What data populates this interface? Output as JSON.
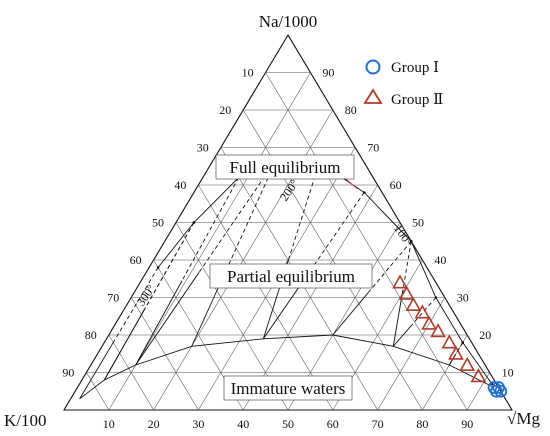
{
  "chart_data": {
    "type": "scatter",
    "subtype": "ternary",
    "title": "",
    "vertices": {
      "top": "Na/1000",
      "left": "K/100",
      "right": "√Mg"
    },
    "tick_labels": [
      "10",
      "20",
      "30",
      "40",
      "50",
      "60",
      "70",
      "80",
      "90"
    ],
    "grid": true,
    "grid_step": 10,
    "regions": {
      "full": "Full equilibrium",
      "partial": "Partial equilibrium",
      "immature": "Immature waters"
    },
    "isotherm_labels": [
      {
        "label": "100°",
        "t": 100
      },
      {
        "label": "200°",
        "t": 200
      },
      {
        "label": "300°",
        "t": 300
      }
    ],
    "isotherms_c": [
      80,
      100,
      120,
      140,
      160,
      180,
      200,
      220,
      240,
      260,
      280,
      300,
      320,
      340
    ],
    "legend_position": "top-right",
    "legend_markers": {
      "group1": {
        "shape": "circle",
        "color": "#1f6fd6"
      },
      "group2": {
        "shape": "triangle",
        "color": "#b33a2a"
      }
    },
    "series": [
      {
        "name": "Group Ⅰ",
        "marker": "circle",
        "color": "#1f6fd6",
        "points": [
          {
            "na": 6,
            "k": 1,
            "mg": 93
          },
          {
            "na": 5,
            "k": 0,
            "mg": 95
          },
          {
            "na": 5,
            "k": 1,
            "mg": 94
          },
          {
            "na": 6,
            "k": 0,
            "mg": 94
          }
        ]
      },
      {
        "name": "Group Ⅱ",
        "marker": "triangle",
        "color": "#b33a2a",
        "points": [
          {
            "na": 34,
            "k": 8,
            "mg": 58
          },
          {
            "na": 31,
            "k": 8,
            "mg": 61
          },
          {
            "na": 28,
            "k": 8,
            "mg": 64
          },
          {
            "na": 26,
            "k": 7,
            "mg": 67
          },
          {
            "na": 23,
            "k": 7,
            "mg": 70
          },
          {
            "na": 21,
            "k": 6,
            "mg": 73
          },
          {
            "na": 18,
            "k": 5,
            "mg": 77
          },
          {
            "na": 15,
            "k": 5,
            "mg": 80
          },
          {
            "na": 12,
            "k": 4,
            "mg": 84
          },
          {
            "na": 9,
            "k": 3,
            "mg": 88
          }
        ]
      }
    ]
  }
}
